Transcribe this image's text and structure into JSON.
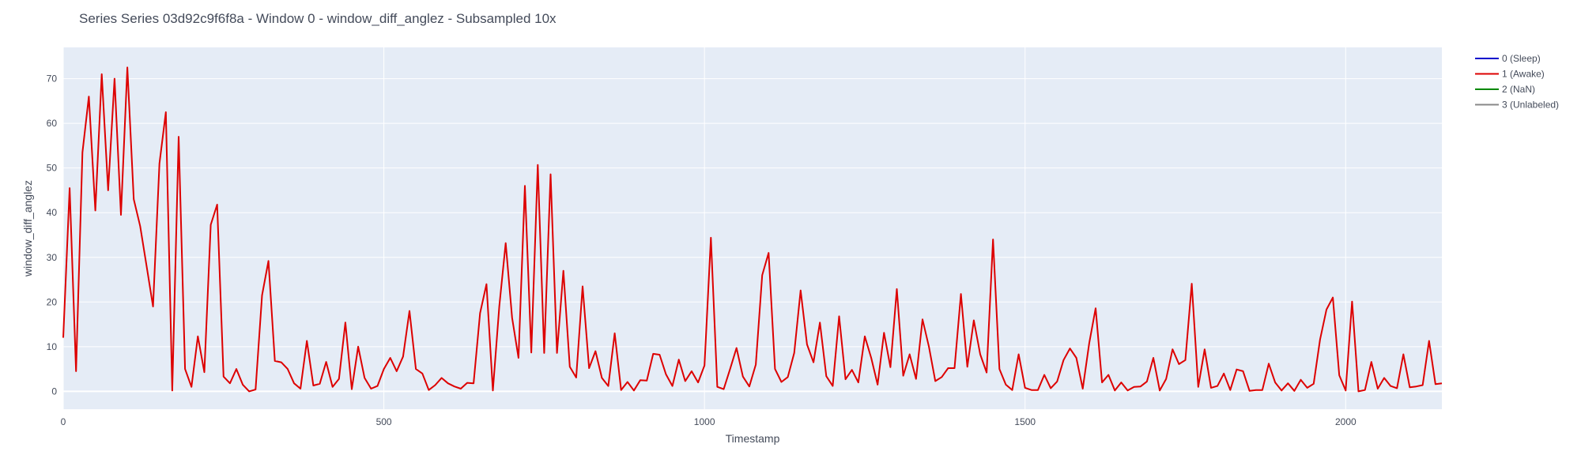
{
  "chart_data": {
    "type": "line",
    "title": "Series Series 03d92c9f6f8a - Window 0 - window_diff_anglez - Subsampled 10x",
    "xlabel": "Timestamp",
    "ylabel": "window_diff_anglez",
    "xlim": [
      0,
      2150
    ],
    "ylim": [
      -4,
      77
    ],
    "xticks": [
      0,
      500,
      1000,
      1500,
      2000
    ],
    "yticks": [
      0,
      10,
      20,
      30,
      40,
      50,
      60,
      70
    ],
    "grid": true,
    "legend_position": "top-right",
    "colors": {
      "plot_bg": "#e5ecf6",
      "grid": "#ffffff",
      "text": "#444b5a"
    },
    "legend": [
      {
        "label": "0 (Sleep)",
        "color": "#0000cc"
      },
      {
        "label": "1 (Awake)",
        "color": "#dd0000"
      },
      {
        "label": "2 (NaN)",
        "color": "#008800"
      },
      {
        "label": "3 (Unlabeled)",
        "color": "#888888"
      }
    ],
    "series": [
      {
        "name": "1 (Awake)",
        "color": "#dd0000",
        "x": [
          0,
          10,
          20,
          30,
          40,
          50,
          60,
          70,
          80,
          90,
          100,
          110,
          120,
          130,
          140,
          150,
          160,
          170,
          180,
          190,
          200,
          210,
          220,
          230,
          240,
          250,
          260,
          270,
          280,
          290,
          300,
          310,
          320,
          330,
          340,
          350,
          360,
          370,
          380,
          390,
          400,
          410,
          420,
          430,
          440,
          450,
          460,
          470,
          480,
          490,
          500,
          510,
          520,
          530,
          540,
          550,
          560,
          570,
          580,
          590,
          600,
          610,
          620,
          630,
          640,
          650,
          660,
          670,
          680,
          690,
          700,
          710,
          720,
          730,
          740,
          750,
          760,
          770,
          780,
          790,
          800,
          810,
          820,
          830,
          840,
          850,
          860,
          870,
          880,
          890,
          900,
          910,
          920,
          930,
          940,
          950,
          960,
          970,
          980,
          990,
          1000,
          1010,
          1020,
          1030,
          1040,
          1050,
          1060,
          1070,
          1080,
          1090,
          1100,
          1110,
          1120,
          1130,
          1140,
          1150,
          1160,
          1170,
          1180,
          1190,
          1200,
          1210,
          1220,
          1230,
          1240,
          1250,
          1260,
          1270,
          1280,
          1290,
          1300,
          1310,
          1320,
          1330,
          1340,
          1350,
          1360,
          1370,
          1380,
          1390,
          1400,
          1410,
          1420,
          1430,
          1440,
          1450,
          1460,
          1470,
          1480,
          1490,
          1500,
          1510,
          1520,
          1530,
          1540,
          1550,
          1560,
          1570,
          1580,
          1590,
          1600,
          1610,
          1620,
          1630,
          1640,
          1650,
          1660,
          1670,
          1680,
          1690,
          1700,
          1710,
          1720,
          1730,
          1740,
          1750,
          1760,
          1770,
          1780,
          1790,
          1800,
          1810,
          1820,
          1830,
          1840,
          1850,
          1860,
          1870,
          1880,
          1890,
          1900,
          1910,
          1920,
          1930,
          1940,
          1950,
          1960,
          1970,
          1980,
          1990,
          2000,
          2010,
          2020,
          2030,
          2040,
          2050,
          2060,
          2070,
          2080,
          2090,
          2100,
          2110,
          2120,
          2130,
          2140,
          2150
        ],
        "y": [
          12,
          45.5,
          4.5,
          53.5,
          66,
          40.5,
          71,
          45,
          70,
          39.5,
          72.5,
          43,
          37,
          28,
          19,
          51,
          62.5,
          0.2,
          57,
          5,
          1,
          12.3,
          4.3,
          37.3,
          41.8,
          3.3,
          1.8,
          5,
          1.5,
          0,
          0.4,
          21.5,
          29.2,
          6.8,
          6.5,
          5,
          1.8,
          0.6,
          11.3,
          1.3,
          1.7,
          6.6,
          1,
          2.8,
          15.4,
          0.5,
          10,
          3,
          0.6,
          1.2,
          5,
          7.5,
          4.5,
          7.8,
          18,
          5,
          4,
          0.3,
          1.4,
          3,
          1.8,
          1.1,
          0.6,
          1.9,
          1.8,
          17.5,
          24,
          0.2,
          19,
          33.2,
          16.5,
          7.5,
          46,
          8.7,
          50.7,
          8.6,
          48.6,
          8.6,
          27,
          5.5,
          3.1,
          23.5,
          5.2,
          9,
          3,
          1.2,
          13,
          0.3,
          2.1,
          0.2,
          2.5,
          2.4,
          8.4,
          8.2,
          3.8,
          1.2,
          7.1,
          2.3,
          4.5,
          2,
          5.8,
          34.4,
          1,
          0.5,
          5,
          9.7,
          3.3,
          1.1,
          6,
          26,
          31,
          5,
          2.1,
          3.2,
          8.6,
          22.6,
          10.5,
          6.5,
          15.4,
          3.4,
          1.2,
          16.8,
          2.7,
          4.8,
          2,
          12.3,
          7.5,
          1.5,
          13.1,
          5.4,
          22.9,
          3.5,
          8.3,
          2.8,
          16.1,
          10,
          2.3,
          3.2,
          5.2,
          5.2,
          21.8,
          5.5,
          15.9,
          8.3,
          4.2,
          34,
          5,
          1.5,
          0.3,
          8.3,
          0.8,
          0.3,
          0.3,
          3.7,
          0.7,
          2.2,
          7,
          9.6,
          7.5,
          0.6,
          10.8,
          18.6,
          2,
          3.7,
          0.2,
          2,
          0.2,
          1,
          1.1,
          2.2,
          7.5,
          0.2,
          2.8,
          9.4,
          6.1,
          7,
          24.1,
          1,
          9.4,
          0.8,
          1.2,
          4,
          0.3,
          4.9,
          4.5,
          0.1,
          0.3,
          0.3,
          6.2,
          2,
          0.2,
          1.8,
          0.1,
          2.6,
          0.8,
          1.7,
          11.6,
          18.3,
          21,
          3.6,
          0.2,
          20.1,
          0,
          0.3,
          6.6,
          0.6,
          3,
          1.2,
          0.7,
          8.3,
          0.9,
          1.1,
          1.4,
          11.3,
          1.6,
          1.8
        ]
      }
    ]
  }
}
